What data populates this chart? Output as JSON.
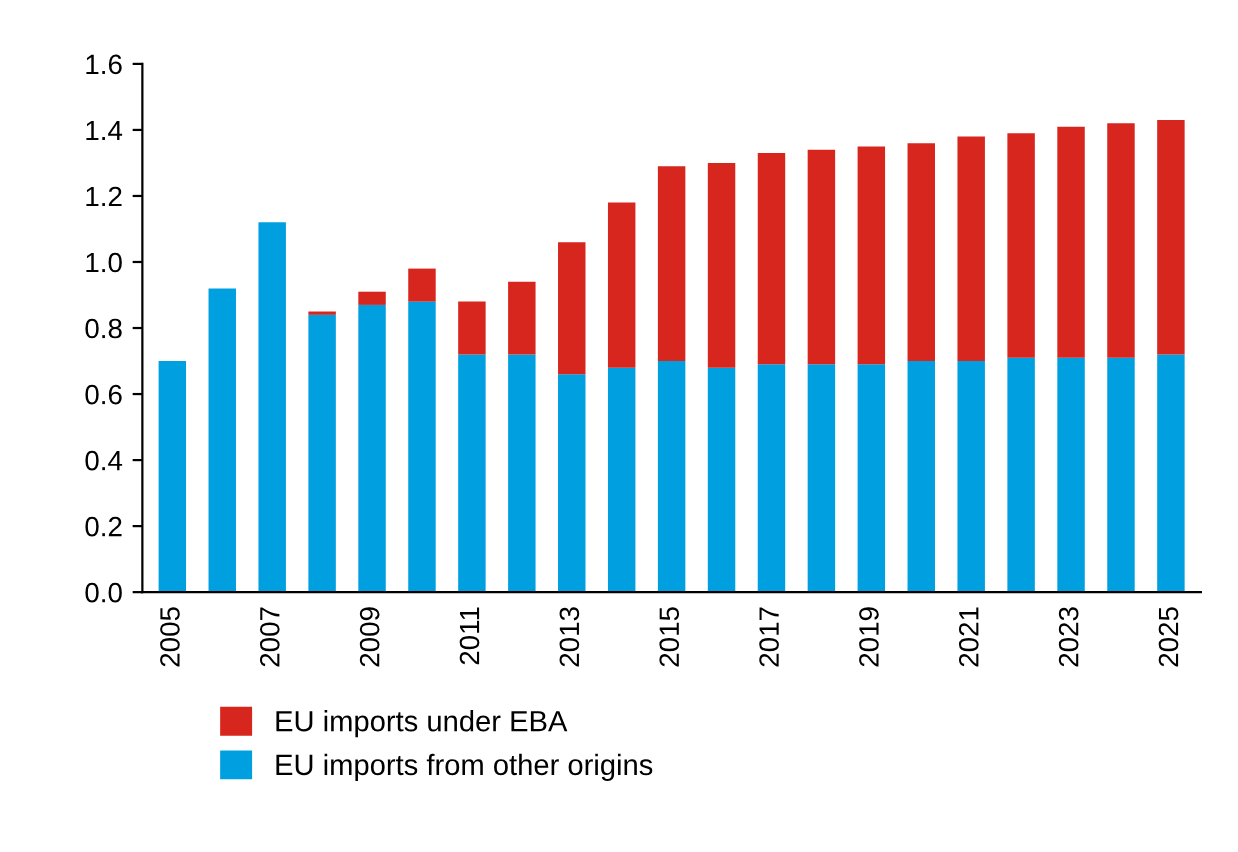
{
  "chart_data": {
    "type": "bar",
    "stacked": true,
    "categories": [
      "2005",
      null,
      "2007",
      null,
      "2009",
      null,
      "2011",
      null,
      "2013",
      null,
      "2015",
      null,
      "2017",
      null,
      "2019",
      null,
      "2021",
      null,
      "2023",
      null,
      "2025"
    ],
    "series": [
      {
        "name": "EU imports from other origins",
        "color": "#00a0e0",
        "values": [
          0.7,
          0.92,
          1.12,
          0.84,
          0.87,
          0.88,
          0.72,
          0.72,
          0.66,
          0.68,
          0.7,
          0.68,
          0.69,
          0.69,
          0.69,
          0.7,
          0.7,
          0.71,
          0.71,
          0.71,
          0.72
        ]
      },
      {
        "name": "EU imports under EBA",
        "color": "#d7261e",
        "values": [
          null,
          null,
          null,
          0.01,
          0.04,
          0.1,
          0.16,
          0.22,
          0.4,
          0.5,
          0.59,
          0.62,
          0.64,
          0.65,
          0.66,
          0.66,
          0.68,
          0.68,
          0.7,
          0.71,
          0.71
        ]
      }
    ],
    "ylim": [
      0,
      1.6
    ],
    "yticks": [
      {
        "value": 0,
        "label": "0.0"
      },
      0.2,
      0.4,
      0.6,
      0.8,
      {
        "value": 1,
        "label": "1.0"
      },
      1.2,
      1.4,
      1.6
    ],
    "grid": false,
    "legend": "bottom"
  }
}
